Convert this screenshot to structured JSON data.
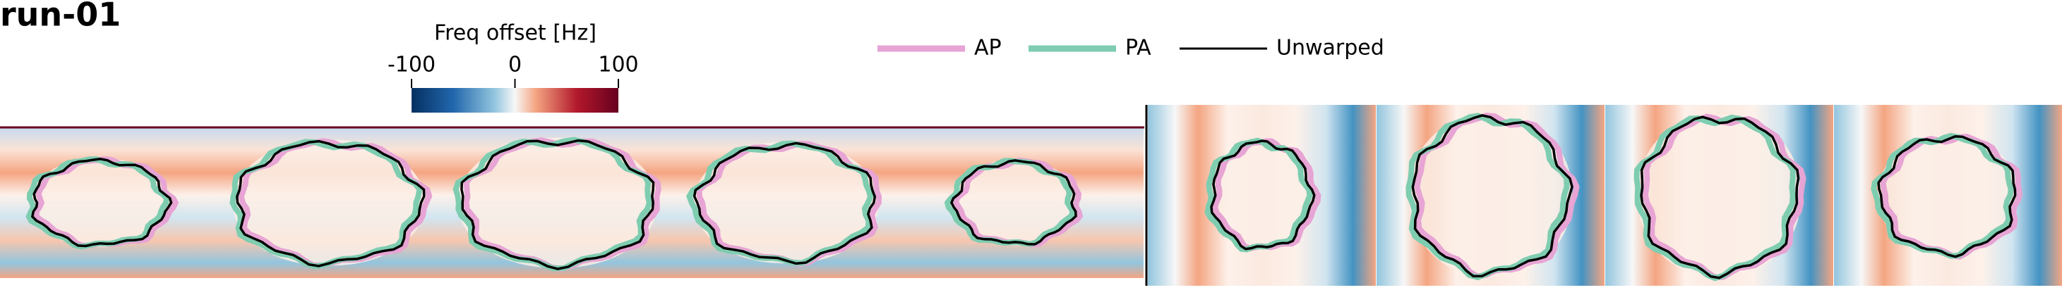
{
  "title": "run-01",
  "colorbar": {
    "label": "Freq offset [Hz]",
    "lim": [
      -100,
      100
    ],
    "ticks": [
      -100,
      0,
      100
    ]
  },
  "legend": [
    {
      "name": "AP",
      "color": "#e7a4d4"
    },
    {
      "name": "PA",
      "color": "#7ecdb0"
    },
    {
      "name": "Unwarped",
      "color": "#000000"
    }
  ]
}
